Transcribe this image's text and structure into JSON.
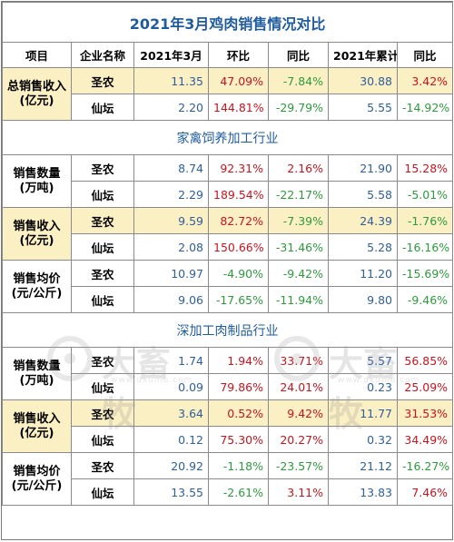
{
  "title": "2021年3月鸡肉销售情况对比",
  "headers": [
    "项目",
    "企业名称",
    "2021年3月",
    "环比",
    "同比",
    "2021年累计",
    "同比"
  ],
  "sections": {
    "overall": {
      "metric": "总销售收入\n(亿元)",
      "rows": [
        {
          "company": "圣农",
          "mar": "11.35",
          "mom": "47.09%",
          "yoy": "-7.84%",
          "ytd": "30.88",
          "ytd_yoy": "3.42%"
        },
        {
          "company": "仙坛",
          "mar": "2.20",
          "mom": "144.81%",
          "yoy": "-29.79%",
          "ytd": "5.55",
          "ytd_yoy": "-14.92%"
        }
      ]
    },
    "poultry": {
      "title": "家禽饲养加工行业",
      "groups": [
        {
          "metric": "销售数量\n(万吨)",
          "rows": [
            {
              "company": "圣农",
              "mar": "8.74",
              "mom": "92.31%",
              "yoy": "2.16%",
              "ytd": "21.90",
              "ytd_yoy": "15.28%"
            },
            {
              "company": "仙坛",
              "mar": "2.29",
              "mom": "189.54%",
              "yoy": "-22.17%",
              "ytd": "5.58",
              "ytd_yoy": "-5.01%"
            }
          ]
        },
        {
          "metric": "销售收入\n(亿元)",
          "rows": [
            {
              "company": "圣农",
              "mar": "9.59",
              "mom": "82.72%",
              "yoy": "-7.39%",
              "ytd": "24.39",
              "ytd_yoy": "-1.76%"
            },
            {
              "company": "仙坛",
              "mar": "2.08",
              "mom": "150.66%",
              "yoy": "-31.46%",
              "ytd": "5.28",
              "ytd_yoy": "-16.16%"
            }
          ]
        },
        {
          "metric": "销售均价\n(元/公斤)",
          "rows": [
            {
              "company": "圣农",
              "mar": "10.97",
              "mom": "-4.90%",
              "yoy": "-9.42%",
              "ytd": "11.20",
              "ytd_yoy": "-15.69%"
            },
            {
              "company": "仙坛",
              "mar": "9.06",
              "mom": "-17.65%",
              "yoy": "-11.94%",
              "ytd": "9.80",
              "ytd_yoy": "-9.46%"
            }
          ]
        }
      ]
    },
    "processed": {
      "title": "深加工肉制品行业",
      "groups": [
        {
          "metric": "销售数量\n(万吨)",
          "rows": [
            {
              "company": "圣农",
              "mar": "1.74",
              "mom": "1.94%",
              "yoy": "33.71%",
              "ytd": "5.57",
              "ytd_yoy": "56.85%"
            },
            {
              "company": "仙坛",
              "mar": "0.09",
              "mom": "79.86%",
              "yoy": "24.01%",
              "ytd": "0.23",
              "ytd_yoy": "25.09%"
            }
          ]
        },
        {
          "metric": "销售收入\n(亿元)",
          "rows": [
            {
              "company": "圣农",
              "mar": "3.64",
              "mom": "0.52%",
              "yoy": "9.42%",
              "ytd": "11.77",
              "ytd_yoy": "31.53%"
            },
            {
              "company": "仙坛",
              "mar": "0.12",
              "mom": "75.30%",
              "yoy": "20.27%",
              "ytd": "0.32",
              "ytd_yoy": "34.49%"
            }
          ]
        },
        {
          "metric": "销售均价\n(元/公斤)",
          "rows": [
            {
              "company": "圣农",
              "mar": "20.92",
              "mom": "-1.18%",
              "yoy": "-23.57%",
              "ytd": "21.12",
              "ytd_yoy": "-16.27%"
            },
            {
              "company": "仙坛",
              "mar": "13.55",
              "mom": "-2.61%",
              "yoy": "3.11%",
              "ytd": "13.83",
              "ytd_yoy": "7.46%"
            }
          ]
        }
      ]
    }
  },
  "watermark": {
    "text": "大畜牧",
    "sub": "www.dxumu.com"
  },
  "colors": {
    "title": "#1f5c9e",
    "number": "#2e5e9e",
    "positive": "#c8141e",
    "negative": "#2e9a3e",
    "highlight": "#fbefc4"
  }
}
